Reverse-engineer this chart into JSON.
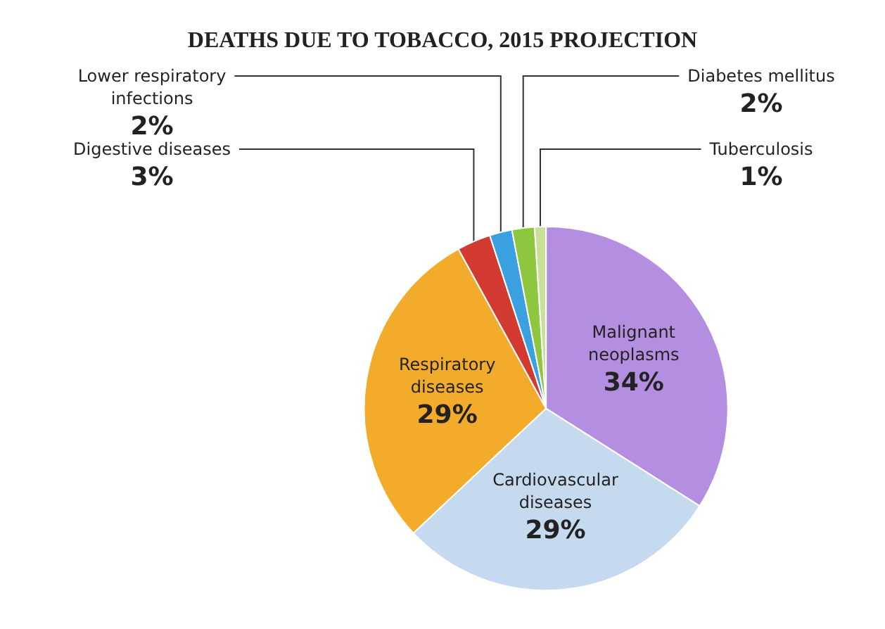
{
  "chart_data": {
    "type": "pie",
    "title": "DEATHS DUE TO TOBACCO, 2015 PROJECTION",
    "categories": [
      "Malignant neoplasms",
      "Cardiovascular diseases",
      "Respiratory diseases",
      "Digestive diseases",
      "Lower respiratory infections",
      "Diabetes mellitus",
      "Tuberculosis"
    ],
    "values": [
      34,
      29,
      29,
      3,
      2,
      2,
      1
    ],
    "colors": [
      "#b48ee0",
      "#c5d9ef",
      "#f2ab2a",
      "#d23a32",
      "#3aa0e0",
      "#8dc63f",
      "#c8e09a"
    ],
    "value_labels": [
      "34%",
      "29%",
      "29%",
      "3%",
      "2%",
      "2%",
      "1%"
    ]
  }
}
